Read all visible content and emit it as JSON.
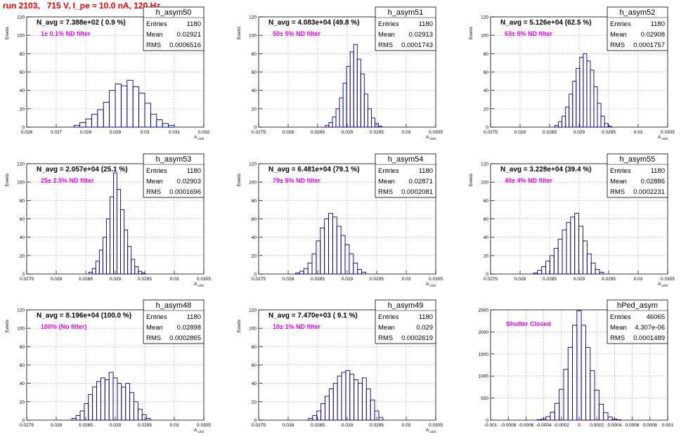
{
  "title": "run 2103,   715 V, I_pe ≈ 10.0 nA, 120 Hz",
  "colors": {
    "title": "#ee0000",
    "histogram": "#000080",
    "annotation": "#ee00ee",
    "text": "#000000",
    "grid": "#b0b0b0"
  },
  "chart_data": [
    {
      "type": "bar",
      "name": "h_asym50",
      "ylabel": "Events",
      "xlabel": "A_LED",
      "n_avg": "N_avg = 7.388e+02 ( 0.9 %)",
      "filter": "1± 0.1% ND filter",
      "stats": [
        [
          "Entries",
          "1180"
        ],
        [
          "Mean",
          "0.02921"
        ],
        [
          "RMS",
          "0.0006516"
        ]
      ],
      "xlim": [
        0.026,
        0.032
      ],
      "ylim": [
        0,
        120
      ],
      "xticks": [
        0.026,
        0.027,
        0.028,
        0.029,
        0.03,
        0.031,
        0.032
      ],
      "xticklabels": [
        "0.026",
        "0.027",
        "0.028",
        "0.029",
        "0.03",
        "0.031",
        "0.032"
      ],
      "yticks": [
        0,
        20,
        40,
        60,
        80,
        100,
        120
      ],
      "x": [
        0.0277,
        0.0279,
        0.0281,
        0.0283,
        0.0285,
        0.0287,
        0.0289,
        0.0291,
        0.0293,
        0.0295,
        0.0297,
        0.0299,
        0.0301,
        0.0303,
        0.0305,
        0.0307,
        0.0309
      ],
      "values": [
        2,
        5,
        9,
        14,
        19,
        27,
        40,
        47,
        45,
        51,
        44,
        37,
        26,
        14,
        8,
        4,
        2
      ]
    },
    {
      "type": "bar",
      "name": "h_asym51",
      "ylabel": "Events",
      "xlabel": "A_LED",
      "n_avg": "N_avg = 4.083e+04 (49.8 %)",
      "filter": "50± 5% ND filter",
      "stats": [
        [
          "Entries",
          "1180"
        ],
        [
          "Mean",
          "0.02913"
        ],
        [
          "RMS",
          "0.0001743"
        ]
      ],
      "xlim": [
        0.0275,
        0.0305
      ],
      "ylim": [
        0,
        120
      ],
      "xticks": [
        0.0275,
        0.028,
        0.0285,
        0.029,
        0.0295,
        0.03,
        0.0305
      ],
      "xticklabels": [
        "0.0275",
        "0.028",
        "0.0285",
        "0.029",
        "0.0295",
        "0.03",
        "0.0305"
      ],
      "yticks": [
        0,
        20,
        40,
        60,
        80,
        100,
        120
      ],
      "x": [
        0.02866,
        0.02872,
        0.02878,
        0.02884,
        0.0289,
        0.02896,
        0.02902,
        0.02908,
        0.02914,
        0.0292,
        0.02926,
        0.02932,
        0.02938,
        0.02944,
        0.0295,
        0.02956
      ],
      "values": [
        2,
        5,
        11,
        20,
        32,
        48,
        66,
        82,
        90,
        74,
        58,
        36,
        20,
        10,
        4,
        1
      ]
    },
    {
      "type": "bar",
      "name": "h_asym52",
      "ylabel": "Events",
      "xlabel": "A_LED",
      "n_avg": "N_avg = 5.126e+04 (62.5 %)",
      "filter": "63± 5% ND filter",
      "stats": [
        [
          "Entries",
          "1180"
        ],
        [
          "Mean",
          "0.02908"
        ],
        [
          "RMS",
          "0.0001757"
        ]
      ],
      "xlim": [
        0.0275,
        0.0305
      ],
      "ylim": [
        0,
        120
      ],
      "xticks": [
        0.0275,
        0.028,
        0.0285,
        0.029,
        0.0295,
        0.03,
        0.0305
      ],
      "xticklabels": [
        "0.0275",
        "0.028",
        "0.0285",
        "0.029",
        "0.0295",
        "0.03",
        "0.0305"
      ],
      "yticks": [
        0,
        20,
        40,
        60,
        80,
        100,
        120
      ],
      "x": [
        0.02862,
        0.02868,
        0.02874,
        0.0288,
        0.02886,
        0.02892,
        0.02898,
        0.02904,
        0.0291,
        0.02916,
        0.02922,
        0.02928,
        0.02934,
        0.0294,
        0.02946,
        0.02952
      ],
      "values": [
        2,
        6,
        12,
        22,
        36,
        50,
        64,
        76,
        80,
        72,
        62,
        44,
        26,
        12,
        4,
        1
      ]
    },
    {
      "type": "bar",
      "name": "h_asym53",
      "ylabel": "Events",
      "xlabel": "A_LED",
      "n_avg": "N_avg = 2.057e+04 (25.1 %)",
      "filter": "25± 2.5% ND filter",
      "stats": [
        [
          "Entries",
          "1180"
        ],
        [
          "Mean",
          "0.02903"
        ],
        [
          "RMS",
          "0.0001696"
        ]
      ],
      "xlim": [
        0.0275,
        0.0305
      ],
      "ylim": [
        0,
        120
      ],
      "xticks": [
        0.0275,
        0.028,
        0.0285,
        0.029,
        0.0295,
        0.03,
        0.0305
      ],
      "xticklabels": [
        "0.0275",
        "0.028",
        "0.0285",
        "0.029",
        "0.0295",
        "0.03",
        "0.0305"
      ],
      "yticks": [
        0,
        20,
        40,
        60,
        80,
        100,
        120
      ],
      "x": [
        0.02858,
        0.02864,
        0.0287,
        0.02876,
        0.02882,
        0.02888,
        0.02894,
        0.029,
        0.02906,
        0.02912,
        0.02918,
        0.02924,
        0.0293,
        0.02936,
        0.02942,
        0.02948
      ],
      "values": [
        2,
        6,
        14,
        26,
        40,
        60,
        84,
        110,
        92,
        70,
        48,
        30,
        16,
        8,
        3,
        1
      ]
    },
    {
      "type": "bar",
      "name": "h_asym54",
      "ylabel": "Events",
      "xlabel": "A_LED",
      "n_avg": "N_avg = 6.481e+04 (79.1 %)",
      "filter": "79± 5% ND filter",
      "stats": [
        [
          "Entries",
          "1180"
        ],
        [
          "Mean",
          "0.02871"
        ],
        [
          "RMS",
          "0.0002081"
        ]
      ],
      "xlim": [
        0.0275,
        0.0305
      ],
      "ylim": [
        0,
        120
      ],
      "xticks": [
        0.0275,
        0.028,
        0.0285,
        0.029,
        0.0295,
        0.03,
        0.0305
      ],
      "xticklabels": [
        "0.0275",
        "0.028",
        "0.0285",
        "0.029",
        "0.0295",
        "0.03",
        "0.0305"
      ],
      "yticks": [
        0,
        20,
        40,
        60,
        80,
        100,
        120
      ],
      "x": [
        0.02816,
        0.02823,
        0.0283,
        0.02837,
        0.02844,
        0.02851,
        0.02858,
        0.02865,
        0.02872,
        0.02879,
        0.02886,
        0.02893,
        0.029,
        0.02907,
        0.02914,
        0.02921,
        0.02928
      ],
      "values": [
        1,
        3,
        6,
        12,
        22,
        36,
        50,
        60,
        66,
        62,
        52,
        42,
        32,
        22,
        12,
        5,
        2
      ]
    },
    {
      "type": "bar",
      "name": "h_asym55",
      "ylabel": "Events",
      "xlabel": "A_LED",
      "n_avg": "N_avg = 3.228e+04 (39.4 %)",
      "filter": "40± 4% ND filter",
      "stats": [
        [
          "Entries",
          "1180"
        ],
        [
          "Mean",
          "0.02886"
        ],
        [
          "RMS",
          "0.0002231"
        ]
      ],
      "xlim": [
        0.0275,
        0.0305
      ],
      "ylim": [
        0,
        120
      ],
      "xticks": [
        0.0275,
        0.028,
        0.0285,
        0.029,
        0.0295,
        0.03,
        0.0305
      ],
      "xticklabels": [
        "0.0275",
        "0.028",
        "0.0285",
        "0.029",
        "0.0295",
        "0.03",
        "0.0305"
      ],
      "yticks": [
        0,
        20,
        40,
        60,
        80,
        100,
        120
      ],
      "x": [
        0.02826,
        0.02833,
        0.0284,
        0.02847,
        0.02854,
        0.02861,
        0.02868,
        0.02875,
        0.02882,
        0.02889,
        0.02896,
        0.02903,
        0.0291,
        0.02917,
        0.02924,
        0.02931,
        0.02938
      ],
      "values": [
        1,
        4,
        8,
        14,
        20,
        28,
        38,
        48,
        56,
        62,
        66,
        52,
        36,
        22,
        12,
        5,
        2
      ]
    },
    {
      "type": "bar",
      "name": "h_asym48",
      "ylabel": "Events",
      "xlabel": "A_LED",
      "n_avg": "N_avg = 8.196e+04 (100.0 %)",
      "filter": "100% (No filter)",
      "stats": [
        [
          "Entries",
          "1180"
        ],
        [
          "Mean",
          "0.02898"
        ],
        [
          "RMS",
          "0.0002865"
        ]
      ],
      "xlim": [
        0.0275,
        0.0305
      ],
      "ylim": [
        0,
        120
      ],
      "xticks": [
        0.0275,
        0.028,
        0.0285,
        0.029,
        0.0295,
        0.03,
        0.0305
      ],
      "xticklabels": [
        "0.0275",
        "0.028",
        "0.0285",
        "0.029",
        "0.0295",
        "0.03",
        "0.0305"
      ],
      "yticks": [
        0,
        20,
        40,
        60,
        80,
        100,
        120
      ],
      "x": [
        0.0283,
        0.02837,
        0.02844,
        0.02851,
        0.02858,
        0.02865,
        0.02872,
        0.02879,
        0.02886,
        0.02893,
        0.029,
        0.02907,
        0.02914,
        0.02921,
        0.02928,
        0.02935,
        0.02942,
        0.02949,
        0.02956
      ],
      "values": [
        2,
        5,
        10,
        18,
        28,
        36,
        42,
        46,
        44,
        52,
        46,
        40,
        36,
        40,
        30,
        20,
        12,
        6,
        2
      ]
    },
    {
      "type": "bar",
      "name": "h_asym49",
      "ylabel": "Events",
      "xlabel": "A_LED",
      "n_avg": "N_avg = 7.470e+03 ( 9.1 %)",
      "filter": "10± 1% ND filter",
      "stats": [
        [
          "Entries",
          "1180"
        ],
        [
          "Mean",
          "0.029"
        ],
        [
          "RMS",
          "0.0002619"
        ]
      ],
      "xlim": [
        0.0275,
        0.0305
      ],
      "ylim": [
        0,
        120
      ],
      "xticks": [
        0.0275,
        0.028,
        0.0285,
        0.029,
        0.0295,
        0.03,
        0.0305
      ],
      "xticklabels": [
        "0.0275",
        "0.028",
        "0.0285",
        "0.029",
        "0.0295",
        "0.03",
        "0.0305"
      ],
      "yticks": [
        0,
        20,
        40,
        60,
        80,
        100,
        120
      ],
      "x": [
        0.02838,
        0.02845,
        0.02852,
        0.02859,
        0.02866,
        0.02873,
        0.0288,
        0.02887,
        0.02894,
        0.02901,
        0.02908,
        0.02915,
        0.02922,
        0.02929,
        0.02936,
        0.02943,
        0.0295,
        0.02957
      ],
      "values": [
        2,
        5,
        10,
        18,
        26,
        34,
        40,
        48,
        52,
        54,
        50,
        44,
        40,
        46,
        34,
        22,
        10,
        3
      ]
    },
    {
      "type": "bar",
      "name": "hPed_asym",
      "ylabel": "",
      "xlabel": "",
      "n_avg": "",
      "filter": "Shutter Closed",
      "stats": [
        [
          "Entries",
          "46065"
        ],
        [
          "Mean",
          "4.307e-06"
        ],
        [
          "RMS",
          "0.0001489"
        ]
      ],
      "xlim": [
        -0.001,
        0.001
      ],
      "ylim": [
        0,
        2500
      ],
      "xticks": [
        -0.001,
        -0.0008,
        -0.0006,
        -0.0004,
        -0.0002,
        0,
        0.0002,
        0.0004,
        0.0006,
        0.0008,
        0.001
      ],
      "xticklabels": [
        "-0.001",
        "-0.0008",
        "-0.0006",
        "-0.0004",
        "-0.0002",
        "0",
        "0.0002",
        "0.0004",
        "0.0006",
        "0.0008",
        "0.001"
      ],
      "yticks": [
        0,
        500,
        1000,
        1500,
        2000,
        2500
      ],
      "x": [
        -0.00045,
        -0.0004,
        -0.00035,
        -0.0003,
        -0.00025,
        -0.0002,
        -0.00015,
        -0.0001,
        -5e-05,
        0,
        5e-05,
        0.0001,
        0.00015,
        0.0002,
        0.00025,
        0.0003,
        0.00035,
        0.0004,
        0.00045
      ],
      "values": [
        10,
        30,
        80,
        180,
        380,
        700,
        1150,
        1650,
        2150,
        2480,
        2150,
        1650,
        1120,
        680,
        360,
        170,
        70,
        25,
        8
      ]
    }
  ]
}
